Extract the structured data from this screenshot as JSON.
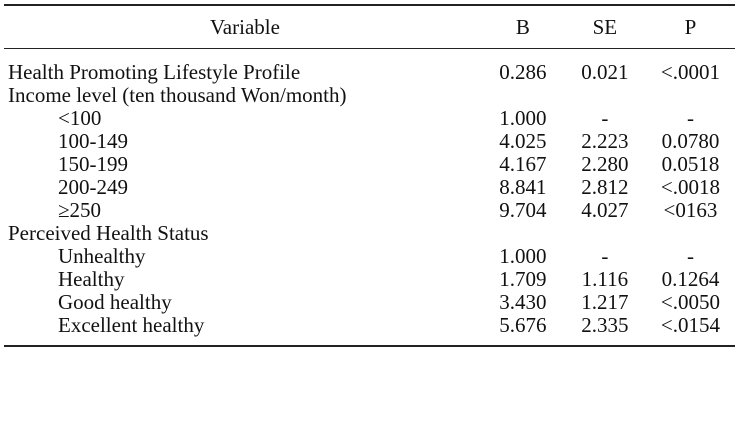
{
  "table": {
    "headers": [
      "Variable",
      "B",
      "SE",
      "P"
    ],
    "rows": [
      {
        "variable": "Health Promoting Lifestyle Profile",
        "b": "0.286",
        "se": "0.021",
        "p": "<.0001",
        "indent": false
      },
      {
        "variable": "Income level (ten thousand Won/month)",
        "b": "",
        "se": "",
        "p": "",
        "indent": false
      },
      {
        "variable": "<100",
        "b": "1.000",
        "se": "-",
        "p": "-",
        "indent": true
      },
      {
        "variable": "100-149",
        "b": "4.025",
        "se": "2.223",
        "p": "0.0780",
        "indent": true
      },
      {
        "variable": "150-199",
        "b": "4.167",
        "se": "2.280",
        "p": "0.0518",
        "indent": true
      },
      {
        "variable": "200-249",
        "b": "8.841",
        "se": "2.812",
        "p": "<.0018",
        "indent": true
      },
      {
        "variable": "≥250",
        "b": "9.704",
        "se": "4.027",
        "p": "<0163",
        "indent": true
      },
      {
        "variable": "Perceived Health Status",
        "b": "",
        "se": "",
        "p": "",
        "indent": false
      },
      {
        "variable": "Unhealthy",
        "b": "1.000",
        "se": "-",
        "p": "-",
        "indent": true
      },
      {
        "variable": "Healthy",
        "b": "1.709",
        "se": "1.116",
        "p": "0.1264",
        "indent": true
      },
      {
        "variable": "Good healthy",
        "b": "3.430",
        "se": "1.217",
        "p": "<.0050",
        "indent": true
      },
      {
        "variable": "Excellent healthy",
        "b": "5.676",
        "se": "2.335",
        "p": "<.0154",
        "indent": true
      }
    ]
  }
}
